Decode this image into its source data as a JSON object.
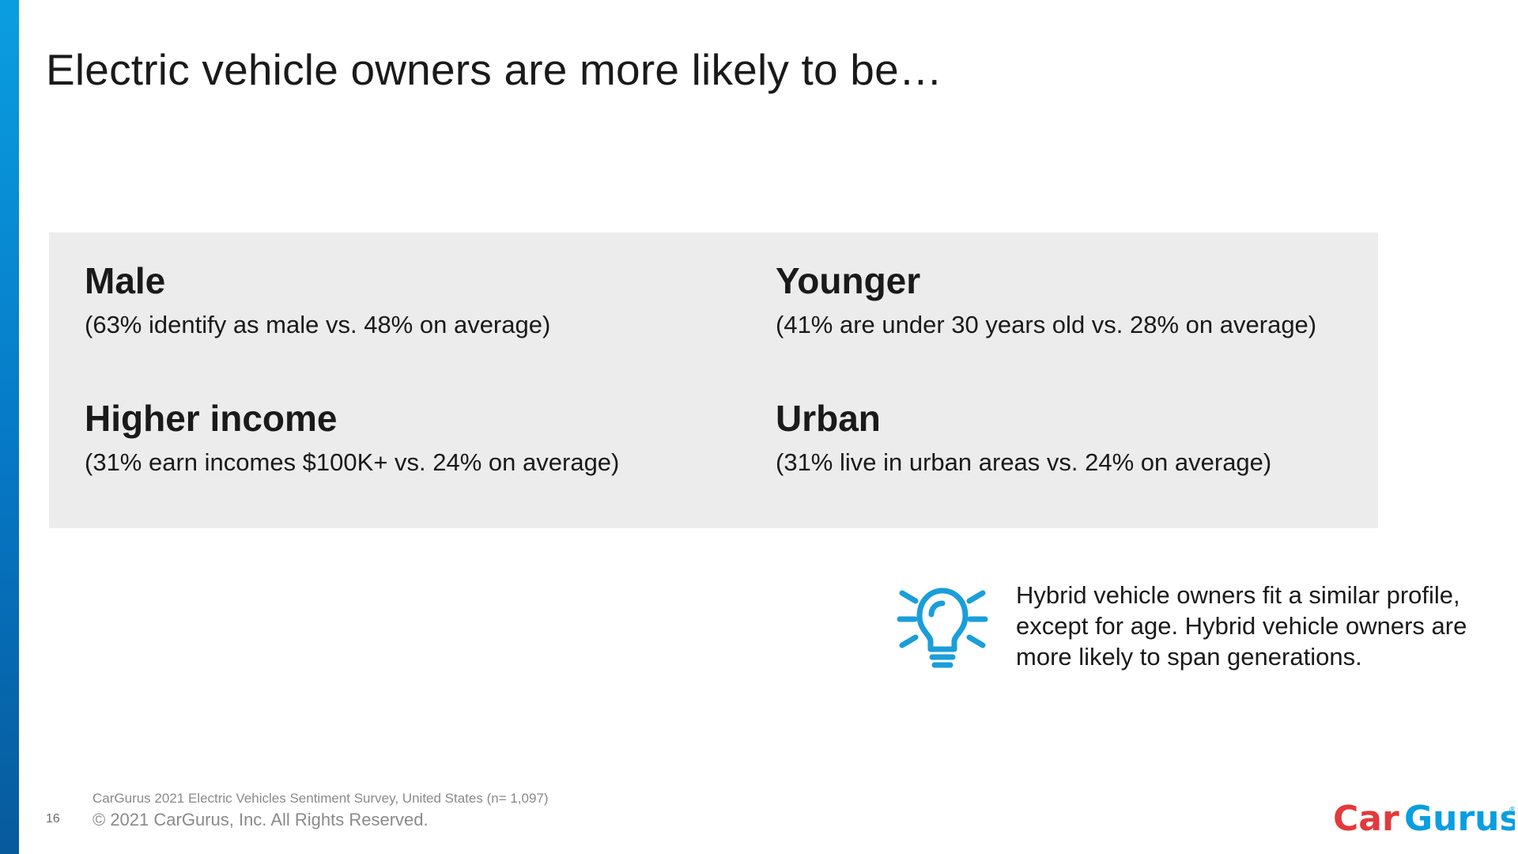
{
  "slide": {
    "title": "Electric vehicle owners are more likely to be…",
    "accent_color": "#0a9ee0",
    "panel_color": "#ececec"
  },
  "stats": [
    {
      "heading": "Male",
      "detail": "(63% identify as male vs. 48% on average)"
    },
    {
      "heading": "Younger",
      "detail": "(41% are under 30 years old vs. 28% on average)"
    },
    {
      "heading": "Higher income",
      "detail": "(31% earn incomes $100K+ vs. 24% on average)"
    },
    {
      "heading": "Urban",
      "detail": "(31% live in urban areas vs. 24% on average)"
    }
  ],
  "insight": {
    "icon": "lightbulb-icon",
    "icon_color": "#1a9ed9",
    "text": "Hybrid vehicle owners fit a similar profile, except for age. Hybrid vehicle owners are more likely to span generations."
  },
  "footer": {
    "source": "CarGurus 2021 Electric Vehicles Sentiment Survey, United States (n= 1,097)",
    "page_number": "16",
    "copyright": "© 2021 CarGurus, Inc.  All Rights Reserved."
  },
  "logo": {
    "text": "CarGurus",
    "brand_red": "#e3393c",
    "brand_blue": "#0a9ee0"
  }
}
